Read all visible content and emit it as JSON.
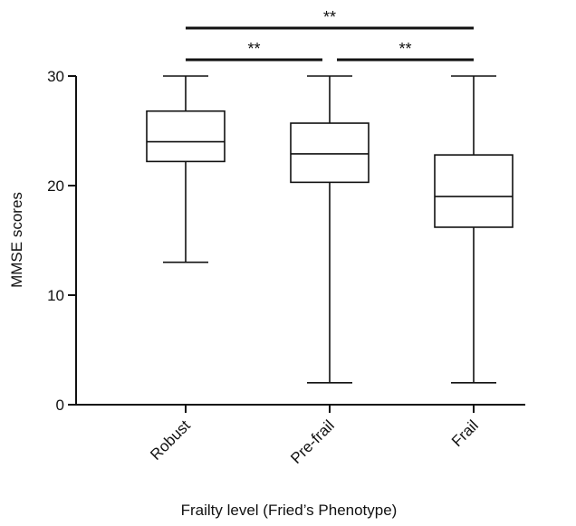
{
  "chart_data": {
    "type": "box",
    "xlabel": "Frailty level (Fried’s Phenotype)",
    "ylabel": "MMSE scores",
    "ylim": [
      0,
      30
    ],
    "yticks": [
      0,
      10,
      20,
      30
    ],
    "grid": false,
    "categories": [
      "Robust",
      "Pre-frail",
      "Frail"
    ],
    "boxes": [
      {
        "category": "Robust",
        "min": 13,
        "q1": 22.2,
        "median": 24,
        "q3": 26.8,
        "max": 30
      },
      {
        "category": "Pre-frail",
        "min": 2,
        "q1": 20.3,
        "median": 22.9,
        "q3": 25.7,
        "max": 30
      },
      {
        "category": "Frail",
        "min": 2,
        "q1": 16.2,
        "median": 19,
        "q3": 22.8,
        "max": 30
      }
    ],
    "significance": [
      {
        "from": "Robust",
        "to": "Frail",
        "label": "**",
        "level": 2
      },
      {
        "from": "Robust",
        "to": "Pre-frail",
        "label": "**",
        "level": 1
      },
      {
        "from": "Pre-frail",
        "to": "Frail",
        "label": "**",
        "level": 1
      }
    ]
  }
}
